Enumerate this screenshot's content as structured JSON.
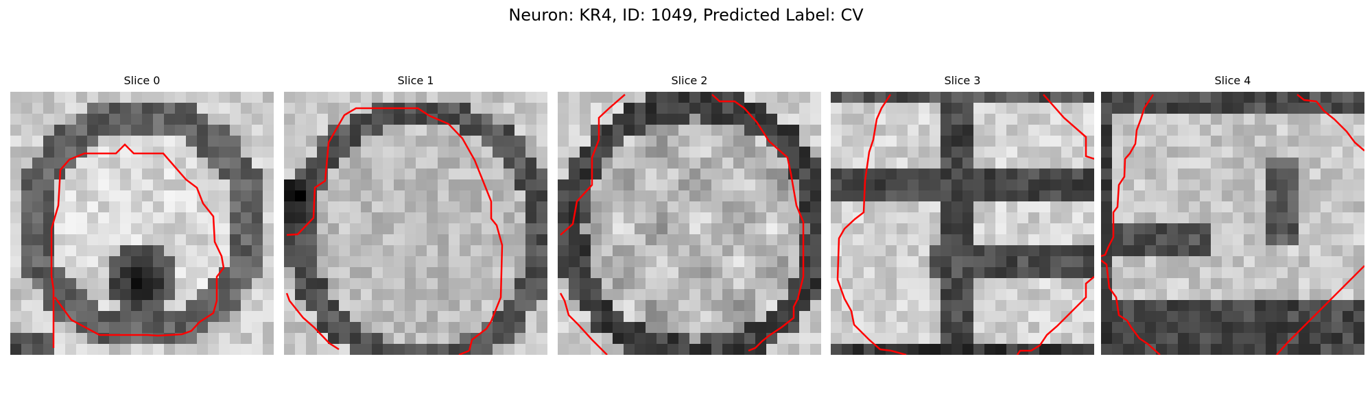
{
  "figure": {
    "title": "Neuron: KR4, ID: 1049, Predicted Label: CV"
  },
  "panels": [
    {
      "title": "Slice 0",
      "seed": 11,
      "pattern": "ring_dark_bottom"
    },
    {
      "title": "Slice 1",
      "seed": 23,
      "pattern": "round_cell"
    },
    {
      "title": "Slice 2",
      "seed": 37,
      "pattern": "round_cell_lobed"
    },
    {
      "title": "Slice 3",
      "seed": 41,
      "pattern": "lobed"
    },
    {
      "title": "Slice 4",
      "seed": 59,
      "pattern": "lobed_dark"
    }
  ],
  "colors": {
    "contour": "#ff0000"
  }
}
